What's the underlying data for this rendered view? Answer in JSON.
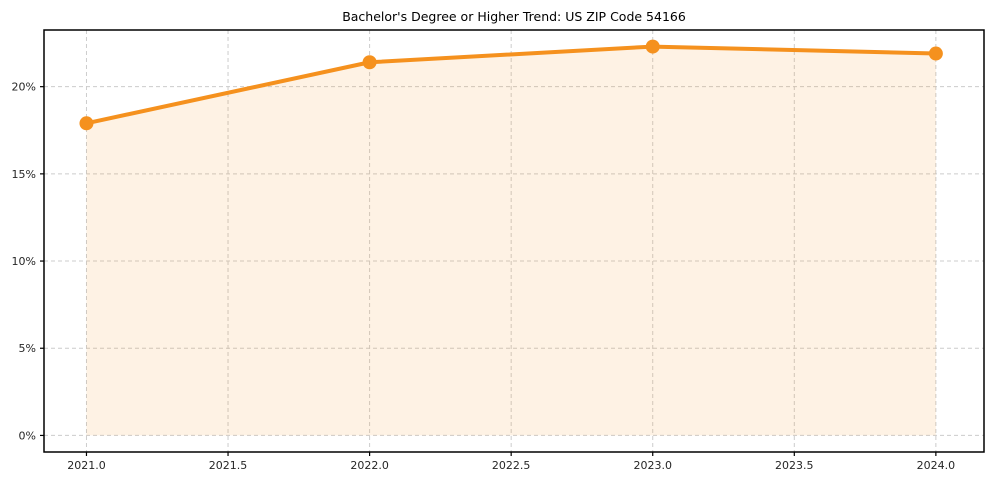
{
  "figure": {
    "background": "#ffffff"
  },
  "chart_data": {
    "type": "line",
    "title": "Bachelor's Degree or Higher Trend: US ZIP Code 54166",
    "x": [
      2021,
      2022,
      2023,
      2024
    ],
    "series": [
      {
        "name": "Bachelor's degree or higher percent",
        "values": [
          17.9,
          21.4,
          22.3,
          21.9
        ]
      }
    ],
    "xlabel": "",
    "ylabel": "",
    "xlim": [
      2020.85,
      2024.17
    ],
    "ylim": [
      -0.95,
      23.25
    ],
    "xticks": [
      2021.0,
      2021.5,
      2022.0,
      2022.5,
      2023.0,
      2023.5,
      2024.0
    ],
    "xtick_labels": [
      "2021.0",
      "2021.5",
      "2022.0",
      "2022.5",
      "2023.0",
      "2023.5",
      "2024.0"
    ],
    "yticks": [
      0,
      5,
      10,
      15,
      20
    ],
    "ytick_labels": [
      "0%",
      "5%",
      "10%",
      "15%",
      "20%"
    ],
    "grid": true,
    "grid_style": "dashed",
    "legend": false,
    "area_fill_to": 0,
    "colors": {
      "line": "#f5911e",
      "marker": "#f5911e",
      "fill": "#f5911e",
      "fill_opacity": 0.12,
      "grid": "#cccccc",
      "spine": "#000000",
      "tick_label": "#262626",
      "title": "#000000"
    },
    "style": {
      "line_width": 4,
      "marker_radius": 7,
      "spine_width": 1.5,
      "grid_width": 1,
      "grid_dash": "4 3",
      "tick_length": 4
    }
  }
}
